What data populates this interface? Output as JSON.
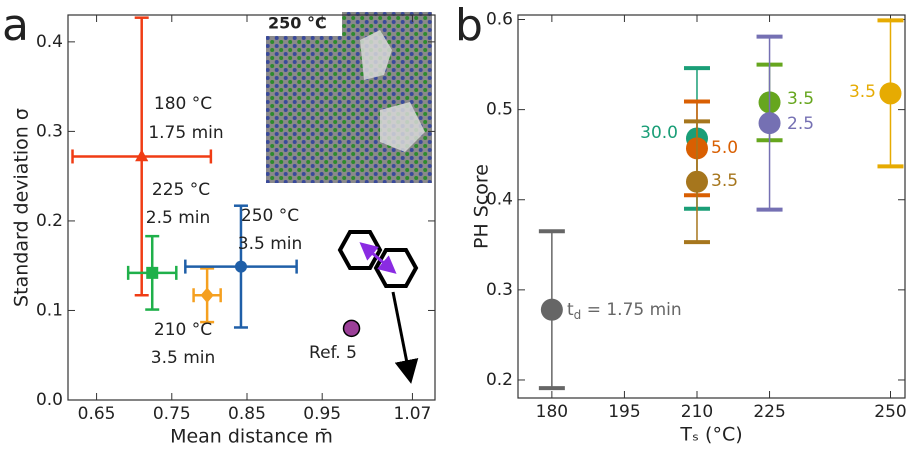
{
  "chart_data": [
    {
      "type": "scatter",
      "panel": "a",
      "xlabel": "Mean distance m̄",
      "ylabel": "Standard deviation σ",
      "inset_label": "250 °C",
      "xlim": [
        0.612,
        1.1
      ],
      "ylim": [
        0,
        0.43
      ],
      "xticks": [
        0.65,
        0.75,
        0.85,
        0.95,
        1.07
      ],
      "yticks": [
        {
          "value": 0,
          "label": "0.0"
        },
        0.1,
        0.2,
        0.3,
        0.4
      ],
      "series": [
        {
          "marker": "triangle",
          "color": "#f03c14",
          "x": 0.71,
          "y": 0.272,
          "xerr": 0.092,
          "yerr": 0.155,
          "label": [
            "180 °C",
            "1.75 min"
          ]
        },
        {
          "marker": "square",
          "color": "#1fb04a",
          "x": 0.724,
          "y": 0.142,
          "xerr": 0.032,
          "yerr": 0.041,
          "label": [
            "225 °C",
            "2.5 min"
          ]
        },
        {
          "marker": "diamond",
          "color": "#f5a020",
          "x": 0.797,
          "y": 0.117,
          "xerr": 0.018,
          "yerr": 0.03,
          "label": [
            "210 °C",
            "3.5 min"
          ]
        },
        {
          "marker": "circle",
          "color": "#1f5fa8",
          "x": 0.842,
          "y": 0.149,
          "xerr": 0.074,
          "yerr": 0.068,
          "label": [
            "250 °C",
            "3.5 min"
          ]
        },
        {
          "marker": "circle",
          "color": "#9b3f98",
          "x": 0.989,
          "y": 0.08,
          "label": [
            "Ref. 5"
          ]
        }
      ]
    },
    {
      "type": "scatter",
      "panel": "b",
      "xlabel": "Tₛ (°C)",
      "ylabel": "PH Score",
      "xlim": [
        173,
        253
      ],
      "ylim": [
        0.18,
        0.605
      ],
      "xticks": [
        180,
        195,
        210,
        225,
        250
      ],
      "yticks": [
        0.2,
        0.3,
        0.4,
        0.5,
        0.6
      ],
      "series": [
        {
          "marker": "circle",
          "color": "#666666",
          "x": 180,
          "y": 0.278,
          "yerr": 0.087,
          "label": [
            "t",
            "d",
            " = 1.75 min"
          ]
        },
        {
          "marker": "circle",
          "color": "#1a9e77",
          "x": 210,
          "y": 0.468,
          "yerr": 0.078,
          "label": [
            "30.0"
          ]
        },
        {
          "marker": "circle",
          "color": "#d95f02",
          "x": 210,
          "y": 0.457,
          "yerr": 0.052,
          "label": [
            "5.0"
          ]
        },
        {
          "marker": "circle",
          "color": "#a6761d",
          "x": 210,
          "y": 0.42,
          "yerr": 0.067,
          "label": [
            "3.5"
          ]
        },
        {
          "marker": "circle",
          "color": "#66a61e",
          "x": 225,
          "y": 0.508,
          "yerr": 0.042,
          "label": [
            "3.5"
          ]
        },
        {
          "marker": "circle",
          "color": "#7570b3",
          "x": 225,
          "y": 0.485,
          "yerr": 0.096,
          "label": [
            "2.5"
          ]
        },
        {
          "marker": "circle",
          "color": "#e6ab02",
          "x": 250,
          "y": 0.518,
          "yerr": 0.081,
          "label": [
            "3.5"
          ]
        }
      ]
    }
  ]
}
